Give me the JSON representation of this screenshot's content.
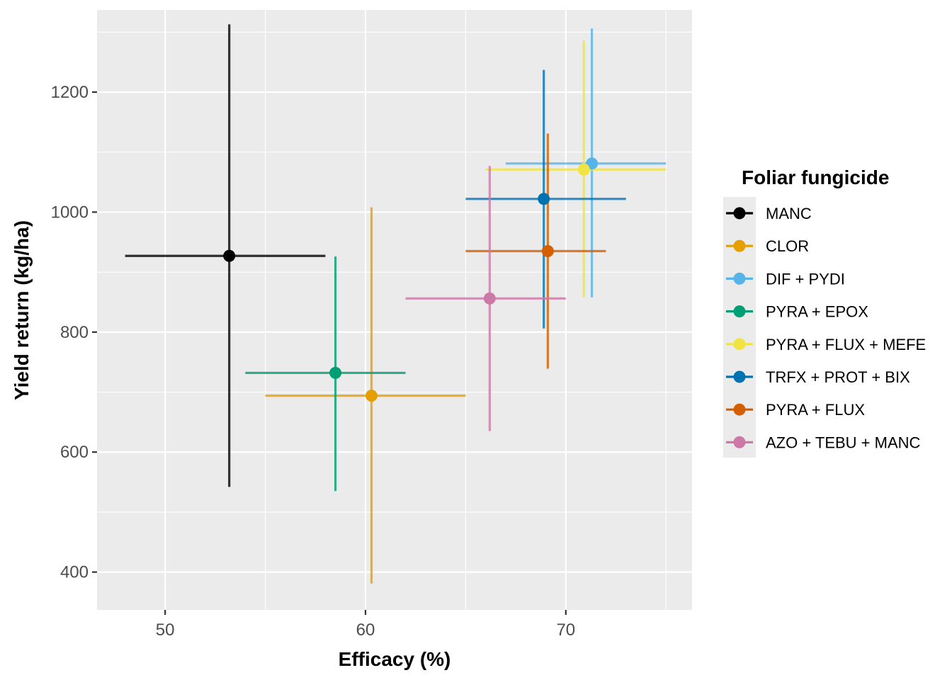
{
  "chart_data": {
    "type": "scatter",
    "title": "",
    "xlabel": "Efficacy (%)",
    "ylabel": "Yield return (kg/ha)",
    "xlim": [
      46.6,
      76.3
    ],
    "ylim": [
      337,
      1337
    ],
    "x_ticks": [
      50,
      60,
      70
    ],
    "y_ticks": [
      400,
      600,
      800,
      1000,
      1200
    ],
    "x_tick_labels": [
      "50",
      "60",
      "70"
    ],
    "y_tick_labels": [
      "400",
      "600",
      "800",
      "1000",
      "1200"
    ],
    "grid": true,
    "legend_title": "Foliar fungicide",
    "legend_position": "right",
    "series": [
      {
        "name": "MANC",
        "color": "#000000",
        "x": 53.2,
        "y": 927,
        "x_low": 48.0,
        "x_high": 58.0,
        "y_low": 542,
        "y_high": 1313
      },
      {
        "name": "CLOR",
        "color": "#E69F00",
        "x": 60.3,
        "y": 694,
        "x_low": 55.0,
        "x_high": 65.0,
        "y_low": 381,
        "y_high": 1008
      },
      {
        "name": "DIF + PYDI",
        "color": "#56B4E9",
        "x": 71.3,
        "y": 1081,
        "x_low": 67.0,
        "x_high": 75.0,
        "y_low": 858,
        "y_high": 1306
      },
      {
        "name": "PYRA + EPOX",
        "color": "#009E73",
        "x": 58.5,
        "y": 732,
        "x_low": 54.0,
        "x_high": 62.0,
        "y_low": 535,
        "y_high": 926
      },
      {
        "name": "PYRA + FLUX + MEFE",
        "color": "#F0E442",
        "x": 70.9,
        "y": 1071,
        "x_low": 66.0,
        "x_high": 75.0,
        "y_low": 858,
        "y_high": 1286
      },
      {
        "name": "TRFX + PROT + BIX",
        "color": "#0072B2",
        "x": 68.9,
        "y": 1022,
        "x_low": 65.0,
        "x_high": 73.0,
        "y_low": 806,
        "y_high": 1237
      },
      {
        "name": "PYRA + FLUX",
        "color": "#D55E00",
        "x": 69.1,
        "y": 935,
        "x_low": 65.0,
        "x_high": 72.0,
        "y_low": 739,
        "y_high": 1131
      },
      {
        "name": "AZO + TEBU + MANC",
        "color": "#CC79A7",
        "x": 66.2,
        "y": 856,
        "x_low": 62.0,
        "x_high": 70.0,
        "y_low": 635,
        "y_high": 1077
      }
    ]
  }
}
